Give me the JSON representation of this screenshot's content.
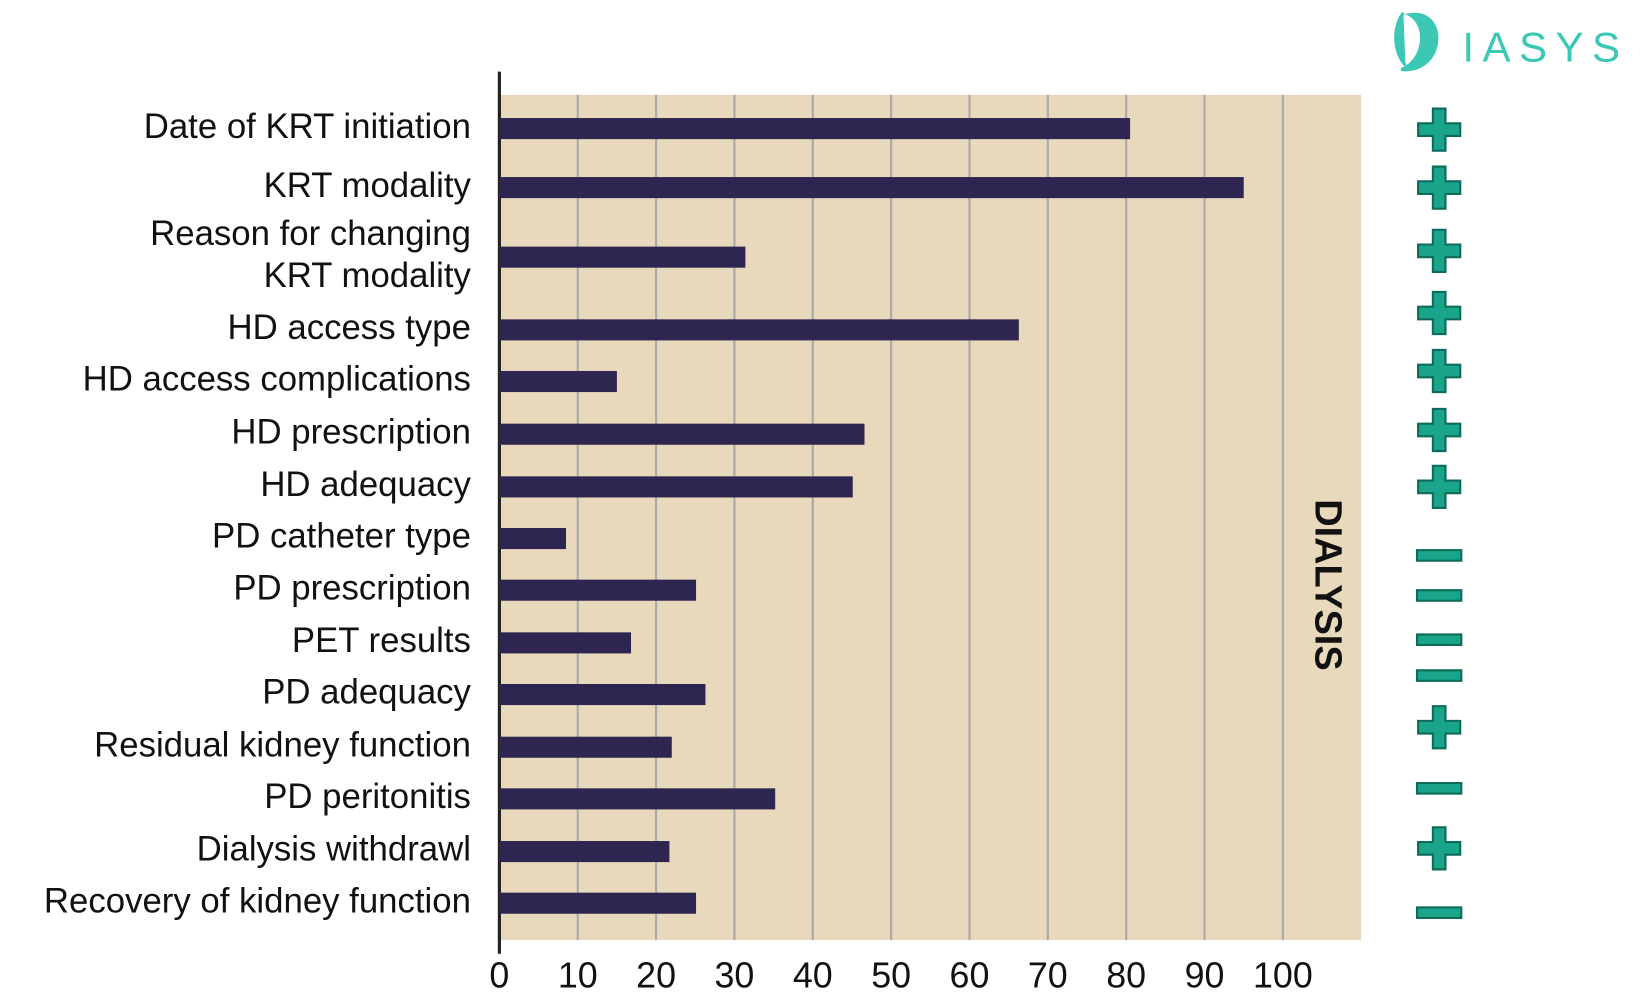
{
  "chart_data": {
    "type": "barh",
    "categories": [
      "Date of KRT initiation",
      "KRT modality",
      "Reason for changing\nKRT modality",
      "HD access type",
      "HD access complications",
      "HD prescription",
      "HD adequacy",
      "PD catheter type",
      "PD prescription",
      "PET results",
      "PD adequacy",
      "Residual kidney function",
      "PD peritonitis",
      "Dialysis withdrawl",
      "Recovery of kidney function"
    ],
    "values": [
      80.5,
      95,
      31.4,
      66.3,
      15,
      46.6,
      45.1,
      8.5,
      25.1,
      16.8,
      26.3,
      22,
      35.2,
      21.7,
      25.1
    ],
    "markers": [
      "+",
      "+",
      "+",
      "+",
      "+",
      "+",
      "+",
      "-",
      "-",
      "-",
      "-",
      "+",
      "-",
      "+",
      "-"
    ],
    "color": "#2e2650",
    "background": "#e8d8bc",
    "marker_color": "#1aa58a",
    "xlim": [
      0,
      110
    ],
    "xticks": [
      0,
      10,
      20,
      30,
      40,
      50,
      60,
      70,
      80,
      90,
      100
    ],
    "grid": true,
    "annotation": "DIALYSIS",
    "logo": "IASYS"
  }
}
